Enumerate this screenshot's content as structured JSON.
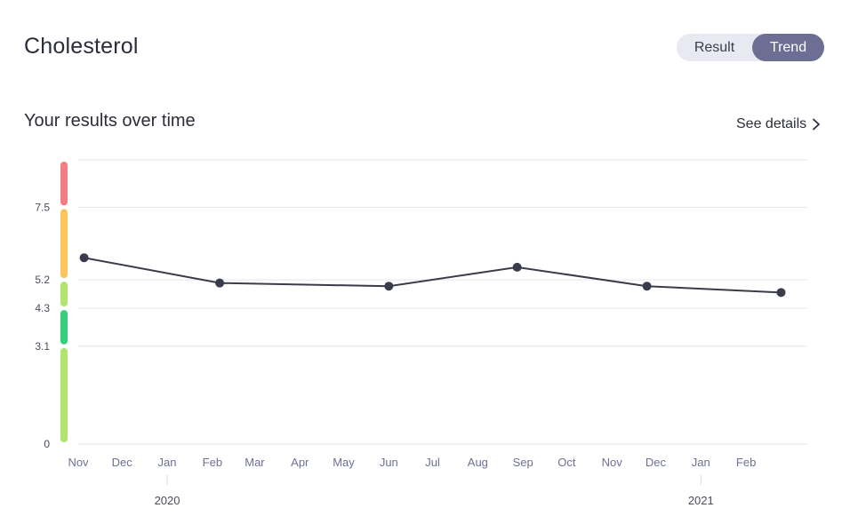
{
  "header": {
    "title": "Cholesterol"
  },
  "view_toggle": {
    "options": [
      "Result",
      "Trend"
    ],
    "selected": "Trend"
  },
  "section": {
    "title": "Your results over time",
    "details_link": "See details"
  },
  "colors": {
    "line": "#3a3c4c",
    "point": "#3a3c4c",
    "grid": "#e3e5ef",
    "tick_text": "#6d7193",
    "range_high": "#f57b86",
    "range_borderline": "#fdc45e",
    "range_ok": "#b0e56d",
    "range_optimal": "#35cf7a",
    "range_low": "#b0e56d"
  },
  "chart_data": {
    "type": "line",
    "title": "",
    "xlabel": "",
    "ylabel": "",
    "ylim": [
      0,
      9
    ],
    "yticks": [
      0,
      3.1,
      4.3,
      5.2,
      7.5
    ],
    "x_tick_labels": [
      "Nov",
      "Dec",
      "Jan",
      "Feb",
      "Mar",
      "Apr",
      "May",
      "Jun",
      "Jul",
      "Aug",
      "Sep",
      "Oct",
      "Nov",
      "Dec",
      "Jan",
      "Feb"
    ],
    "year_labels": [
      {
        "label": "2020",
        "month": "2020-01"
      },
      {
        "label": "2021",
        "month": "2021-01"
      }
    ],
    "xlim": [
      "2019-11-01",
      "2021-03-15"
    ],
    "series": [
      {
        "values": [
          {
            "x": "2019-11-05",
            "y": 5.9
          },
          {
            "x": "2020-02-06",
            "y": 5.1
          },
          {
            "x": "2020-06-01",
            "y": 5.0
          },
          {
            "x": "2020-08-28",
            "y": 5.6
          },
          {
            "x": "2020-11-25",
            "y": 5.0
          },
          {
            "x": "2021-02-25",
            "y": 4.8
          }
        ]
      }
    ],
    "reference_ranges": [
      {
        "from": 7.5,
        "to": 9,
        "color_key": "range_high"
      },
      {
        "from": 5.2,
        "to": 7.5,
        "color_key": "range_borderline"
      },
      {
        "from": 4.3,
        "to": 5.2,
        "color_key": "range_ok"
      },
      {
        "from": 3.1,
        "to": 4.3,
        "color_key": "range_optimal"
      },
      {
        "from": 0,
        "to": 3.1,
        "color_key": "range_low"
      }
    ],
    "grid": true,
    "legend": "none"
  }
}
